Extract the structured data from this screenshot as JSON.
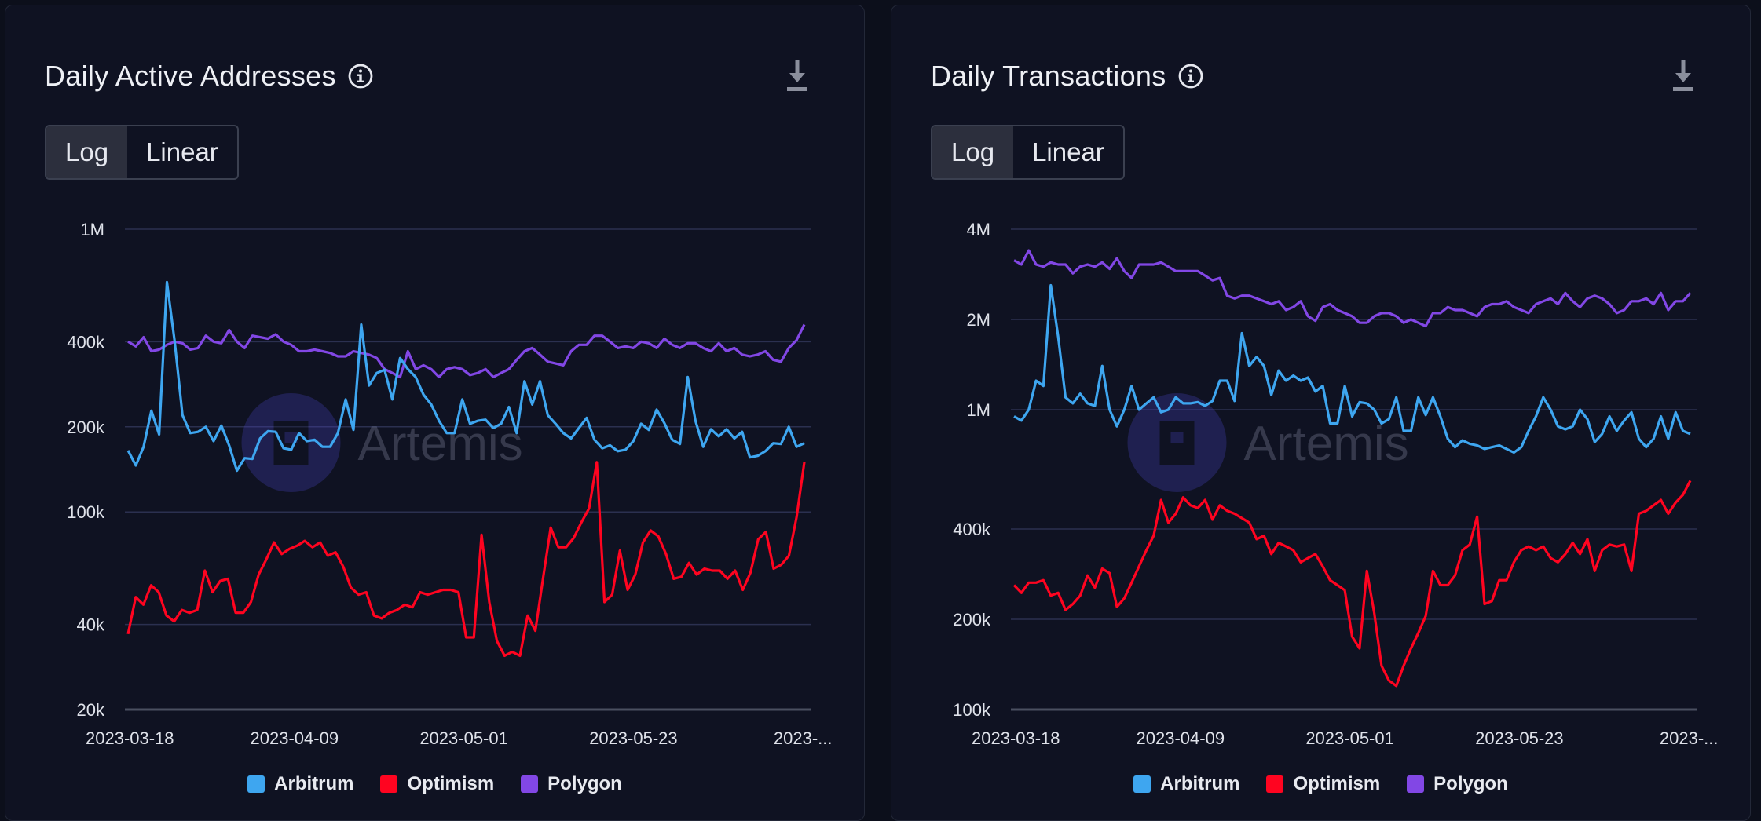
{
  "panels": [
    {
      "title": "Daily Active Addresses",
      "toggle": {
        "log_label": "Log",
        "linear_label": "Linear",
        "selected": "Log"
      },
      "watermark": "Artemis",
      "icons": {
        "info": "info-icon",
        "download": "download-icon"
      }
    },
    {
      "title": "Daily Transactions",
      "toggle": {
        "log_label": "Log",
        "linear_label": "Linear",
        "selected": "Log"
      },
      "watermark": "Artemis",
      "icons": {
        "info": "info-icon",
        "download": "download-icon"
      }
    }
  ],
  "chart_data": [
    {
      "type": "line",
      "title": "Daily Active Addresses",
      "scale": "log",
      "ylim": [
        20000,
        1000000
      ],
      "y_ticks": [
        {
          "value": 1000000,
          "label": "1M"
        },
        {
          "value": 400000,
          "label": "400k"
        },
        {
          "value": 200000,
          "label": "200k"
        },
        {
          "value": 100000,
          "label": "100k"
        },
        {
          "value": 40000,
          "label": "40k"
        },
        {
          "value": 20000,
          "label": "20k"
        }
      ],
      "x_ticks": [
        {
          "value": "2023-03-18",
          "label": "2023-03-18"
        },
        {
          "value": "2023-04-09",
          "label": "2023-04-09"
        },
        {
          "value": "2023-05-01",
          "label": "2023-05-01"
        },
        {
          "value": "2023-05-23",
          "label": "2023-05-23"
        },
        {
          "value": "2023-06-14",
          "label": "2023-..."
        }
      ],
      "x_start": "2023-03-18",
      "x_end": "2023-06-15",
      "grid": true,
      "legend_position": "bottom",
      "series": [
        {
          "name": "Arbitrum",
          "color": "#3ea6f0",
          "values": [
            165000,
            146000,
            170000,
            228000,
            188000,
            650000,
            400000,
            220000,
            190000,
            192000,
            200000,
            178000,
            202000,
            172000,
            140000,
            155000,
            154000,
            182000,
            193000,
            192000,
            168000,
            166000,
            190000,
            178000,
            180000,
            170000,
            170000,
            190000,
            250000,
            195000,
            460000,
            280000,
            310000,
            318000,
            250000,
            350000,
            320000,
            300000,
            260000,
            240000,
            210000,
            190000,
            190000,
            250000,
            205000,
            210000,
            212000,
            198000,
            205000,
            235000,
            190000,
            290000,
            240000,
            290000,
            220000,
            205000,
            190000,
            182000,
            198000,
            215000,
            180000,
            168000,
            172000,
            164000,
            166000,
            178000,
            205000,
            195000,
            230000,
            206000,
            180000,
            174000,
            300000,
            210000,
            170000,
            196000,
            185000,
            196000,
            182000,
            192000,
            156000,
            158000,
            164000,
            175000,
            174000,
            200000,
            170000,
            175000
          ]
        },
        {
          "name": "Optimism",
          "color": "#ff0420",
          "values": [
            37000,
            50000,
            47000,
            55000,
            52000,
            43000,
            41000,
            45000,
            44000,
            45000,
            62000,
            52000,
            57000,
            58000,
            44000,
            44000,
            48000,
            60000,
            68000,
            78000,
            71000,
            74000,
            76000,
            79000,
            75000,
            78000,
            70000,
            72000,
            64000,
            54000,
            51000,
            52000,
            43000,
            42000,
            44000,
            45000,
            47000,
            46000,
            52000,
            51000,
            52000,
            53000,
            53000,
            52000,
            36000,
            36000,
            83000,
            48000,
            35000,
            31000,
            32000,
            31000,
            43000,
            38000,
            58000,
            88000,
            75000,
            75000,
            81000,
            92000,
            103000,
            150000,
            48000,
            51000,
            73000,
            53000,
            60000,
            78000,
            86000,
            82000,
            71000,
            58000,
            59000,
            66000,
            60000,
            63000,
            62000,
            62000,
            58000,
            62000,
            53000,
            61000,
            80000,
            85000,
            63000,
            65000,
            70000,
            96000,
            150000
          ]
        },
        {
          "name": "Polygon",
          "color": "#8247e5",
          "values": [
            400000,
            385000,
            415000,
            370000,
            375000,
            390000,
            400000,
            395000,
            375000,
            380000,
            420000,
            400000,
            395000,
            440000,
            400000,
            380000,
            420000,
            415000,
            410000,
            425000,
            400000,
            390000,
            370000,
            370000,
            375000,
            370000,
            365000,
            355000,
            355000,
            370000,
            365000,
            360000,
            350000,
            320000,
            310000,
            300000,
            370000,
            320000,
            330000,
            320000,
            300000,
            320000,
            325000,
            320000,
            305000,
            310000,
            320000,
            300000,
            310000,
            320000,
            345000,
            370000,
            380000,
            360000,
            340000,
            335000,
            330000,
            370000,
            390000,
            390000,
            420000,
            420000,
            400000,
            380000,
            385000,
            380000,
            400000,
            395000,
            380000,
            410000,
            390000,
            380000,
            395000,
            395000,
            380000,
            370000,
            395000,
            370000,
            380000,
            360000,
            355000,
            360000,
            370000,
            345000,
            340000,
            380000,
            405000,
            460000
          ]
        }
      ]
    },
    {
      "type": "line",
      "title": "Daily Transactions",
      "scale": "log",
      "ylim": [
        100000,
        4000000
      ],
      "y_ticks": [
        {
          "value": 4000000,
          "label": "4M"
        },
        {
          "value": 2000000,
          "label": "2M"
        },
        {
          "value": 1000000,
          "label": "1M"
        },
        {
          "value": 400000,
          "label": "400k"
        },
        {
          "value": 200000,
          "label": "200k"
        },
        {
          "value": 100000,
          "label": "100k"
        }
      ],
      "x_ticks": [
        {
          "value": "2023-03-18",
          "label": "2023-03-18"
        },
        {
          "value": "2023-04-09",
          "label": "2023-04-09"
        },
        {
          "value": "2023-05-01",
          "label": "2023-05-01"
        },
        {
          "value": "2023-05-23",
          "label": "2023-05-23"
        },
        {
          "value": "2023-06-14",
          "label": "2023-..."
        }
      ],
      "x_start": "2023-03-18",
      "x_end": "2023-06-15",
      "grid": true,
      "legend_position": "bottom",
      "series": [
        {
          "name": "Arbitrum",
          "color": "#3ea6f0",
          "values": [
            950000,
            920000,
            1000000,
            1250000,
            1200000,
            2600000,
            1750000,
            1100000,
            1050000,
            1130000,
            1050000,
            1030000,
            1400000,
            1000000,
            880000,
            1000000,
            1200000,
            1000000,
            1050000,
            1100000,
            980000,
            1000000,
            1100000,
            1050000,
            1050000,
            1060000,
            1030000,
            1070000,
            1250000,
            1250000,
            1070000,
            1800000,
            1400000,
            1500000,
            1400000,
            1120000,
            1350000,
            1250000,
            1300000,
            1250000,
            1280000,
            1150000,
            1200000,
            900000,
            900000,
            1200000,
            950000,
            1060000,
            1050000,
            1000000,
            900000,
            930000,
            1100000,
            850000,
            850000,
            1100000,
            960000,
            1100000,
            950000,
            800000,
            750000,
            790000,
            770000,
            760000,
            740000,
            750000,
            760000,
            740000,
            720000,
            750000,
            850000,
            950000,
            1100000,
            1000000,
            880000,
            860000,
            880000,
            1000000,
            930000,
            780000,
            830000,
            950000,
            850000,
            920000,
            980000,
            800000,
            750000,
            800000,
            950000,
            800000,
            980000,
            850000,
            830000
          ]
        },
        {
          "name": "Optimism",
          "color": "#ff0420",
          "values": [
            260000,
            245000,
            265000,
            265000,
            270000,
            240000,
            245000,
            215000,
            225000,
            240000,
            280000,
            255000,
            295000,
            285000,
            220000,
            235000,
            265000,
            300000,
            340000,
            380000,
            500000,
            420000,
            450000,
            510000,
            480000,
            470000,
            500000,
            430000,
            480000,
            460000,
            450000,
            435000,
            420000,
            370000,
            380000,
            330000,
            360000,
            350000,
            340000,
            310000,
            320000,
            330000,
            300000,
            270000,
            260000,
            250000,
            175000,
            160000,
            290000,
            210000,
            140000,
            125000,
            120000,
            140000,
            160000,
            180000,
            205000,
            290000,
            260000,
            260000,
            280000,
            340000,
            355000,
            440000,
            225000,
            230000,
            270000,
            270000,
            310000,
            340000,
            350000,
            340000,
            350000,
            320000,
            310000,
            330000,
            360000,
            330000,
            370000,
            290000,
            340000,
            355000,
            350000,
            355000,
            290000,
            450000,
            460000,
            480000,
            500000,
            450000,
            490000,
            520000,
            580000
          ]
        },
        {
          "name": "Polygon",
          "color": "#8247e5",
          "values": [
            3150000,
            3050000,
            3400000,
            3050000,
            3000000,
            3100000,
            3050000,
            3050000,
            2850000,
            3000000,
            3050000,
            3000000,
            3100000,
            2950000,
            3200000,
            2900000,
            2750000,
            3050000,
            3050000,
            3050000,
            3100000,
            3000000,
            2900000,
            2900000,
            2900000,
            2900000,
            2800000,
            2700000,
            2750000,
            2400000,
            2350000,
            2400000,
            2400000,
            2350000,
            2300000,
            2250000,
            2300000,
            2150000,
            2200000,
            2300000,
            2050000,
            1980000,
            2200000,
            2250000,
            2150000,
            2100000,
            2050000,
            1950000,
            1950000,
            2050000,
            2100000,
            2100000,
            2050000,
            1950000,
            2000000,
            1950000,
            1900000,
            2100000,
            2100000,
            2200000,
            2150000,
            2150000,
            2100000,
            2050000,
            2200000,
            2250000,
            2250000,
            2300000,
            2200000,
            2150000,
            2100000,
            2250000,
            2300000,
            2350000,
            2250000,
            2450000,
            2300000,
            2200000,
            2350000,
            2400000,
            2350000,
            2250000,
            2100000,
            2150000,
            2300000,
            2300000,
            2350000,
            2250000,
            2450000,
            2150000,
            2300000,
            2300000,
            2450000
          ]
        }
      ]
    }
  ]
}
